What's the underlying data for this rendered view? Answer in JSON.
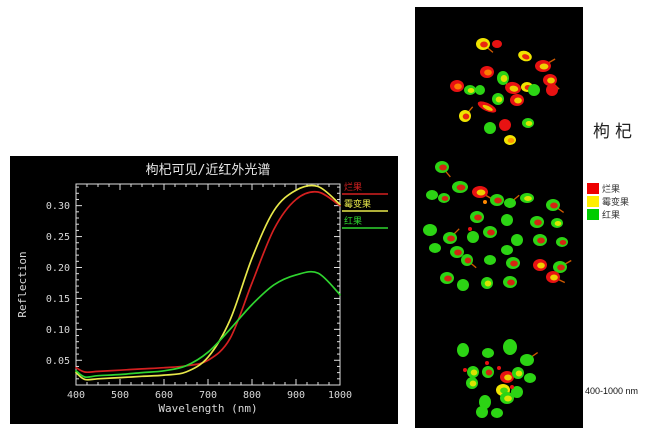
{
  "page": {
    "background": "#ffffff"
  },
  "chart_data": {
    "type": "line",
    "title": "枸杞可见/近红外光谱",
    "xlabel": "Wavelength (nm)",
    "ylabel": "Reflection",
    "xlim": [
      400,
      1000
    ],
    "ylim": [
      0.01,
      0.335
    ],
    "x_major_step": 100,
    "x_minor_step": 25,
    "y_major_step": 0.05,
    "y_minor_step": 0.01,
    "y_major_ticks": [
      0.05,
      0.1,
      0.15,
      0.2,
      0.25,
      0.3
    ],
    "x_major_ticks": [
      400,
      500,
      600,
      700,
      800,
      900,
      1000
    ],
    "grid": false,
    "legend_position": "right-inside",
    "background": "#000000",
    "frame_color": "#e0e0e0",
    "tick_label_color": "#d8d8d8",
    "title_color": "#e8e8e8",
    "x": [
      400,
      420,
      450,
      500,
      550,
      600,
      650,
      700,
      750,
      800,
      850,
      900,
      950,
      1000
    ],
    "series": [
      {
        "name": "烂果",
        "color": "#d42020",
        "values": [
          0.038,
          0.031,
          0.032,
          0.034,
          0.036,
          0.038,
          0.041,
          0.05,
          0.085,
          0.175,
          0.262,
          0.31,
          0.322,
          0.3
        ]
      },
      {
        "name": "霉变果",
        "color": "#e8e84a",
        "values": [
          0.03,
          0.019,
          0.02,
          0.022,
          0.024,
          0.026,
          0.031,
          0.055,
          0.115,
          0.215,
          0.292,
          0.325,
          0.331,
          0.302
        ]
      },
      {
        "name": "红果",
        "color": "#2fd42f",
        "values": [
          0.033,
          0.023,
          0.025,
          0.027,
          0.03,
          0.033,
          0.041,
          0.063,
          0.1,
          0.14,
          0.172,
          0.188,
          0.191,
          0.156
        ]
      }
    ]
  },
  "right_panel": {
    "label": "枸杞",
    "range_label": "400-1000 nm",
    "legend": [
      {
        "label": "烂果",
        "color": "#ee0000"
      },
      {
        "label": "霉变果",
        "color": "#ffee00"
      },
      {
        "label": "红果",
        "color": "#00cc00"
      }
    ],
    "berry_colors": {
      "r": "#e81212",
      "y": "#f0e400",
      "g": "#2cd414",
      "o": "#ff8800"
    },
    "clusters": [
      {
        "name": "top-cluster",
        "berries": [
          [
            68,
            37,
            7,
            6,
            0,
            "y",
            "r",
            40
          ],
          [
            82,
            37,
            5,
            4,
            0,
            "r",
            null,
            0
          ],
          [
            110,
            49,
            7,
            5,
            20,
            "y",
            "r",
            0
          ],
          [
            128,
            59,
            8,
            6,
            0,
            "r",
            "y",
            -30
          ],
          [
            72,
            65,
            7,
            6,
            0,
            "r",
            "o",
            0
          ],
          [
            88,
            71,
            6,
            7,
            0,
            "g",
            "y",
            60
          ],
          [
            42,
            79,
            7,
            6,
            0,
            "r",
            "o",
            0
          ],
          [
            55,
            83,
            6,
            5,
            0,
            "g",
            "y",
            0
          ],
          [
            65,
            83,
            5,
            5,
            0,
            "g",
            null,
            0
          ],
          [
            98,
            81,
            8,
            6,
            10,
            "r",
            "y",
            0
          ],
          [
            112,
            80,
            6,
            5,
            0,
            "y",
            "r",
            0
          ],
          [
            119,
            83,
            6,
            6,
            0,
            "g",
            null,
            0
          ],
          [
            135,
            73,
            7,
            6,
            0,
            "r",
            "y",
            45
          ],
          [
            137,
            83,
            6,
            6,
            0,
            "r",
            null,
            0
          ],
          [
            83,
            92,
            6,
            6,
            0,
            "g",
            "y",
            0
          ],
          [
            102,
            93,
            7,
            6,
            0,
            "r",
            "y",
            0
          ],
          [
            72,
            100,
            10,
            4,
            25,
            "r",
            "y",
            0
          ],
          [
            50,
            109,
            6,
            6,
            0,
            "y",
            "r",
            -50
          ],
          [
            75,
            121,
            6,
            6,
            0,
            "g",
            null,
            0
          ],
          [
            90,
            118,
            6,
            6,
            0,
            "r",
            null,
            0
          ],
          [
            113,
            116,
            6,
            5,
            0,
            "g",
            "y",
            0
          ],
          [
            95,
            133,
            6,
            5,
            0,
            "y",
            "o",
            0
          ]
        ]
      },
      {
        "name": "middle-cluster",
        "berries": [
          [
            27,
            160,
            7,
            6,
            0,
            "g",
            "r",
            50
          ],
          [
            45,
            180,
            8,
            6,
            0,
            "g",
            "r",
            0
          ],
          [
            17,
            188,
            6,
            5,
            0,
            "g",
            null,
            0
          ],
          [
            29,
            191,
            6,
            5,
            0,
            "g",
            "r",
            0
          ],
          [
            65,
            185,
            8,
            6,
            0,
            "r",
            "y",
            30
          ],
          [
            82,
            193,
            7,
            6,
            0,
            "g",
            "r",
            0
          ],
          [
            95,
            196,
            6,
            5,
            0,
            "g",
            null,
            -40
          ],
          [
            112,
            191,
            7,
            5,
            0,
            "g",
            "y",
            0
          ],
          [
            138,
            198,
            7,
            6,
            0,
            "g",
            "r",
            35
          ],
          [
            62,
            210,
            7,
            6,
            0,
            "g",
            "r",
            0
          ],
          [
            92,
            213,
            6,
            6,
            0,
            "g",
            null,
            0
          ],
          [
            122,
            215,
            7,
            6,
            0,
            "g",
            "r",
            0
          ],
          [
            142,
            216,
            6,
            5,
            0,
            "g",
            "y",
            0
          ],
          [
            15,
            223,
            7,
            6,
            0,
            "g",
            null,
            0
          ],
          [
            35,
            231,
            7,
            6,
            0,
            "g",
            "r",
            -45
          ],
          [
            58,
            230,
            6,
            6,
            0,
            "g",
            null,
            0
          ],
          [
            75,
            225,
            7,
            6,
            0,
            "g",
            "r",
            0
          ],
          [
            102,
            233,
            6,
            6,
            0,
            "g",
            null,
            0
          ],
          [
            125,
            233,
            7,
            6,
            0,
            "g",
            "r",
            0
          ],
          [
            147,
            235,
            6,
            5,
            0,
            "g",
            "r",
            0
          ],
          [
            20,
            241,
            6,
            5,
            0,
            "g",
            null,
            0
          ],
          [
            42,
            245,
            7,
            6,
            0,
            "g",
            "r",
            0
          ],
          [
            92,
            243,
            6,
            5,
            0,
            "g",
            null,
            0
          ],
          [
            52,
            253,
            6,
            6,
            0,
            "g",
            "r",
            40
          ],
          [
            75,
            253,
            6,
            5,
            0,
            "g",
            null,
            0
          ],
          [
            98,
            256,
            7,
            6,
            0,
            "g",
            "r",
            0
          ],
          [
            125,
            258,
            7,
            6,
            0,
            "r",
            "y",
            0
          ],
          [
            145,
            260,
            7,
            6,
            0,
            "g",
            "r",
            -30
          ],
          [
            32,
            271,
            7,
            6,
            0,
            "g",
            "r",
            0
          ],
          [
            48,
            278,
            6,
            6,
            0,
            "g",
            null,
            0
          ],
          [
            72,
            276,
            6,
            6,
            0,
            "g",
            "y",
            0
          ],
          [
            95,
            275,
            7,
            6,
            0,
            "g",
            "r",
            0
          ],
          [
            138,
            270,
            7,
            6,
            0,
            "r",
            "y",
            25
          ],
          [
            55,
            222,
            2,
            2,
            0,
            "r",
            null,
            0
          ],
          [
            70,
            195,
            2,
            2,
            0,
            "o",
            null,
            0
          ]
        ]
      },
      {
        "name": "bottom-cluster",
        "berries": [
          [
            48,
            343,
            6,
            7,
            0,
            "g",
            null,
            0
          ],
          [
            73,
            346,
            6,
            5,
            0,
            "g",
            null,
            0
          ],
          [
            95,
            340,
            7,
            8,
            0,
            "g",
            null,
            0
          ],
          [
            112,
            353,
            7,
            6,
            0,
            "g",
            null,
            -35
          ],
          [
            58,
            365,
            6,
            6,
            0,
            "g",
            "y",
            0
          ],
          [
            73,
            365,
            6,
            6,
            0,
            "g",
            "r",
            0
          ],
          [
            92,
            370,
            7,
            6,
            0,
            "r",
            "y",
            0
          ],
          [
            103,
            366,
            6,
            6,
            0,
            "g",
            "y",
            0
          ],
          [
            115,
            371,
            6,
            5,
            0,
            "g",
            null,
            0
          ],
          [
            57,
            376,
            6,
            6,
            0,
            "g",
            "y",
            0
          ],
          [
            88,
            383,
            7,
            6,
            0,
            "y",
            "g",
            0
          ],
          [
            102,
            385,
            6,
            6,
            0,
            "g",
            null,
            0
          ],
          [
            70,
            395,
            6,
            7,
            0,
            "g",
            null,
            0
          ],
          [
            92,
            391,
            7,
            6,
            0,
            "g",
            "y",
            0
          ],
          [
            67,
            405,
            6,
            6,
            0,
            "g",
            null,
            0
          ],
          [
            82,
            406,
            6,
            5,
            0,
            "g",
            null,
            0
          ],
          [
            50,
            363,
            2,
            2,
            0,
            "r",
            null,
            0
          ],
          [
            72,
            356,
            2,
            2,
            0,
            "r",
            null,
            0
          ],
          [
            84,
            361,
            2,
            2,
            0,
            "r",
            null,
            0
          ],
          [
            97,
            380,
            2,
            2,
            0,
            "r",
            null,
            0
          ]
        ]
      }
    ]
  }
}
